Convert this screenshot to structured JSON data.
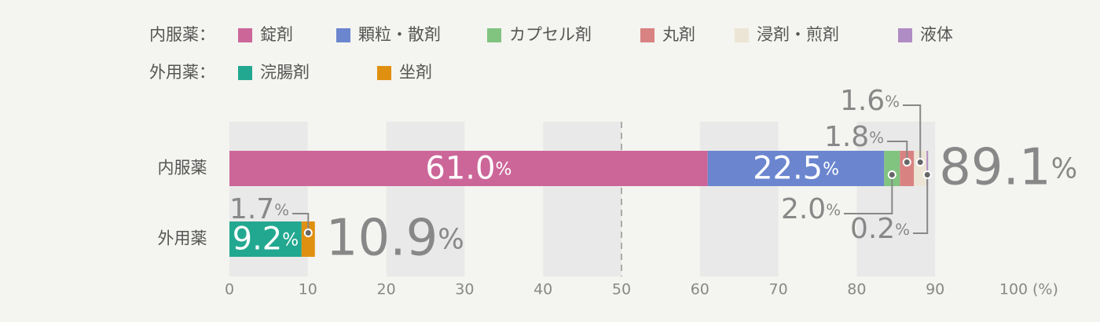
{
  "chart_data": {
    "type": "stacked-bar-horizontal",
    "categories": [
      "内服薬",
      "外用薬"
    ],
    "groups": [
      {
        "label": "内服薬：",
        "total": 89.1,
        "total_label": "89.1%",
        "series": [
          {
            "name": "錠剤",
            "color": "#cc6699",
            "value": 61.0,
            "value_label": "61.0%"
          },
          {
            "name": "顆粒・散剤",
            "color": "#6b86cf",
            "value": 22.5,
            "value_label": "22.5%"
          },
          {
            "name": "カプセル剤",
            "color": "#80c480",
            "value": 2.0,
            "value_label": "2.0%"
          },
          {
            "name": "丸剤",
            "color": "#d98282",
            "value": 1.8,
            "value_label": "1.8%"
          },
          {
            "name": "浸剤・煎剤",
            "color": "#ece5d5",
            "value": 1.6,
            "value_label": "1.6%"
          },
          {
            "name": "液体",
            "color": "#b08cc4",
            "value": 0.2,
            "value_label": "0.2%"
          }
        ]
      },
      {
        "label": "外用薬：",
        "total": 10.9,
        "total_label": "10.9%",
        "series": [
          {
            "name": "浣腸剤",
            "color": "#22a890",
            "value": 9.2,
            "value_label": "9.2%"
          },
          {
            "name": "坐剤",
            "color": "#e09010",
            "value": 1.7,
            "value_label": "1.7%"
          }
        ]
      }
    ],
    "xlim": [
      0,
      100
    ],
    "xticks": [
      0,
      10,
      20,
      30,
      40,
      50,
      60,
      70,
      80,
      90,
      100
    ],
    "x_unit": "(%)",
    "reference_line": 50,
    "grid_bands": true
  }
}
